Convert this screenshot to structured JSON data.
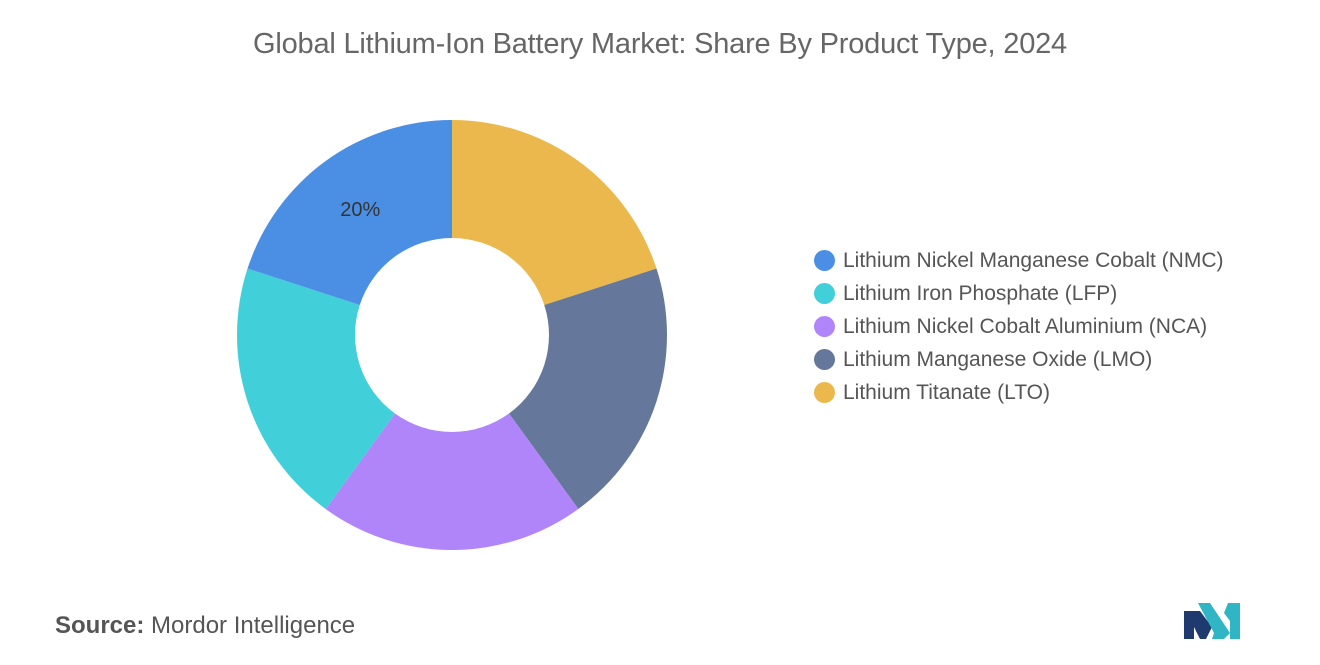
{
  "title": "Global Lithium-Ion Battery Market: Share By Product Type, 2024",
  "chart_data": {
    "type": "pie",
    "donut": true,
    "title": "Global Lithium-Ion Battery Market: Share By Product Type, 2024",
    "legend_position": "right",
    "categories": [
      "Lithium Nickel Manganese Cobalt (NMC)",
      "Lithium Iron Phosphate (LFP)",
      "Lithium Nickel Cobalt Aluminium (NCA)",
      "Lithium Manganese Oxide (LMO)",
      "Lithium Titanate (LTO)"
    ],
    "values": [
      20,
      20,
      20,
      20,
      20
    ],
    "colors": [
      "#4a8fe3",
      "#41cfd9",
      "#b085fa",
      "#65789b",
      "#ebb84d"
    ],
    "data_labels": [
      {
        "category": "Lithium Nickel Manganese Cobalt (NMC)",
        "text": "20%"
      }
    ]
  },
  "legend": {
    "items": [
      {
        "label": "Lithium Nickel Manganese Cobalt (NMC)",
        "color": "#4a8fe3"
      },
      {
        "label": "Lithium Iron Phosphate (LFP)",
        "color": "#41cfd9"
      },
      {
        "label": "Lithium Nickel Cobalt Aluminium (NCA)",
        "color": "#b085fa"
      },
      {
        "label": "Lithium Manganese Oxide (LMO)",
        "color": "#65789b"
      },
      {
        "label": "Lithium Titanate (LTO)",
        "color": "#ebb84d"
      }
    ]
  },
  "source": {
    "key": "Source:",
    "value": "Mordor Intelligence"
  },
  "logo": {
    "icon": "mordor-intelligence-logo-icon",
    "colors": [
      "#1f3a6e",
      "#2fb5c4"
    ]
  }
}
